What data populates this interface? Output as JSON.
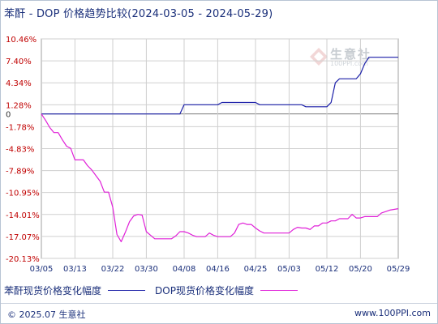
{
  "title": "苯酐 - DOP 价格趋势比较(2024-03-05 - 2024-05-29)",
  "footer": {
    "copyright": "© 2025.07 生意社",
    "url": "www.100PPI.com"
  },
  "watermark": {
    "text": "生意社",
    "url": "100PPI.com"
  },
  "colors": {
    "series1": "#1b1fa8",
    "series2": "#e020d8",
    "grid": "#cfcfcf",
    "ytick": "#c00000",
    "xtick": "#1a2f7a",
    "zero_line": "#7a7a7a"
  },
  "chart_data": {
    "type": "line",
    "title": "苯酐 - DOP 价格趋势比较(2024-03-05 - 2024-05-29)",
    "y_ticks": [
      "10.46%",
      "7.40%",
      "4.34%",
      "1.28%",
      "0",
      "-1.78%",
      "-4.83%",
      "-7.89%",
      "-10.95%",
      "-14.01%",
      "-17.07%",
      "-20.13%"
    ],
    "y_tick_values": [
      10.46,
      7.4,
      4.34,
      1.28,
      0,
      -1.78,
      -4.83,
      -7.89,
      -10.95,
      -14.01,
      -17.07,
      -20.13
    ],
    "ylim": [
      -20.13,
      10.46
    ],
    "x_ticks": [
      "03/05",
      "03/13",
      "03/22",
      "03/30",
      "04/08",
      "04/16",
      "04/25",
      "05/03",
      "05/12",
      "05/20",
      "05/29"
    ],
    "grid": true,
    "legend_position": "bottom",
    "series": [
      {
        "name": "苯酐现货价格变化幅度",
        "points": [
          [
            "03/05",
            0
          ],
          [
            "04/07",
            0
          ],
          [
            "04/08",
            1.28
          ],
          [
            "04/16",
            1.28
          ],
          [
            "04/17",
            1.6
          ],
          [
            "04/25",
            1.6
          ],
          [
            "04/26",
            1.28
          ],
          [
            "05/06",
            1.28
          ],
          [
            "05/07",
            1.0
          ],
          [
            "05/12",
            1.0
          ],
          [
            "05/13",
            1.6
          ],
          [
            "05/14",
            4.34
          ],
          [
            "05/15",
            4.9
          ],
          [
            "05/19",
            4.9
          ],
          [
            "05/20",
            5.6
          ],
          [
            "05/21",
            7.0
          ],
          [
            "05/22",
            7.9
          ],
          [
            "05/29",
            7.9
          ]
        ]
      },
      {
        "name": "DOP现货价格变化幅度",
        "points": [
          [
            "03/05",
            0
          ],
          [
            "03/06",
            -0.9
          ],
          [
            "03/07",
            -1.9
          ],
          [
            "03/08",
            -2.6
          ],
          [
            "03/09",
            -2.6
          ],
          [
            "03/10",
            -3.6
          ],
          [
            "03/11",
            -4.5
          ],
          [
            "03/12",
            -4.8
          ],
          [
            "03/13",
            -6.4
          ],
          [
            "03/14",
            -6.4
          ],
          [
            "03/15",
            -6.4
          ],
          [
            "03/16",
            -7.2
          ],
          [
            "03/17",
            -7.8
          ],
          [
            "03/18",
            -8.6
          ],
          [
            "03/19",
            -9.4
          ],
          [
            "03/20",
            -10.9
          ],
          [
            "03/21",
            -10.9
          ],
          [
            "03/22",
            -13.0
          ],
          [
            "03/23",
            -16.8
          ],
          [
            "03/24",
            -17.8
          ],
          [
            "03/25",
            -16.5
          ],
          [
            "03/26",
            -15.0
          ],
          [
            "03/27",
            -14.2
          ],
          [
            "03/28",
            -14.0
          ],
          [
            "03/29",
            -14.1
          ],
          [
            "03/30",
            -16.4
          ],
          [
            "03/31",
            -16.9
          ],
          [
            "04/01",
            -17.4
          ],
          [
            "04/02",
            -17.4
          ],
          [
            "04/03",
            -17.4
          ],
          [
            "04/04",
            -17.4
          ],
          [
            "04/05",
            -17.4
          ],
          [
            "04/06",
            -17.0
          ],
          [
            "04/07",
            -16.4
          ],
          [
            "04/08",
            -16.4
          ],
          [
            "04/09",
            -16.6
          ],
          [
            "04/10",
            -16.9
          ],
          [
            "04/11",
            -17.1
          ],
          [
            "04/12",
            -17.1
          ],
          [
            "04/13",
            -17.1
          ],
          [
            "04/14",
            -16.6
          ],
          [
            "04/15",
            -16.9
          ],
          [
            "04/16",
            -17.1
          ],
          [
            "04/17",
            -17.1
          ],
          [
            "04/18",
            -17.1
          ],
          [
            "04/19",
            -17.1
          ],
          [
            "04/20",
            -16.6
          ],
          [
            "04/21",
            -15.4
          ],
          [
            "04/22",
            -15.2
          ],
          [
            "04/23",
            -15.4
          ],
          [
            "04/24",
            -15.4
          ],
          [
            "04/25",
            -15.9
          ],
          [
            "04/26",
            -16.3
          ],
          [
            "04/27",
            -16.6
          ],
          [
            "04/28",
            -16.6
          ],
          [
            "04/29",
            -16.6
          ],
          [
            "04/30",
            -16.6
          ],
          [
            "05/01",
            -16.6
          ],
          [
            "05/02",
            -16.6
          ],
          [
            "05/03",
            -16.6
          ],
          [
            "05/04",
            -16.1
          ],
          [
            "05/05",
            -15.8
          ],
          [
            "05/06",
            -15.9
          ],
          [
            "05/07",
            -15.9
          ],
          [
            "05/08",
            -16.1
          ],
          [
            "05/09",
            -15.6
          ],
          [
            "05/10",
            -15.6
          ],
          [
            "05/11",
            -15.2
          ],
          [
            "05/12",
            -15.2
          ],
          [
            "05/13",
            -14.9
          ],
          [
            "05/14",
            -14.9
          ],
          [
            "05/15",
            -14.6
          ],
          [
            "05/16",
            -14.6
          ],
          [
            "05/17",
            -14.6
          ],
          [
            "05/18",
            -14.0
          ],
          [
            "05/19",
            -14.5
          ],
          [
            "05/20",
            -14.5
          ],
          [
            "05/21",
            -14.3
          ],
          [
            "05/22",
            -14.3
          ],
          [
            "05/23",
            -14.3
          ],
          [
            "05/24",
            -14.3
          ],
          [
            "05/25",
            -13.8
          ],
          [
            "05/26",
            -13.6
          ],
          [
            "05/27",
            -13.4
          ],
          [
            "05/28",
            -13.3
          ],
          [
            "05/29",
            -13.2
          ]
        ]
      }
    ]
  }
}
